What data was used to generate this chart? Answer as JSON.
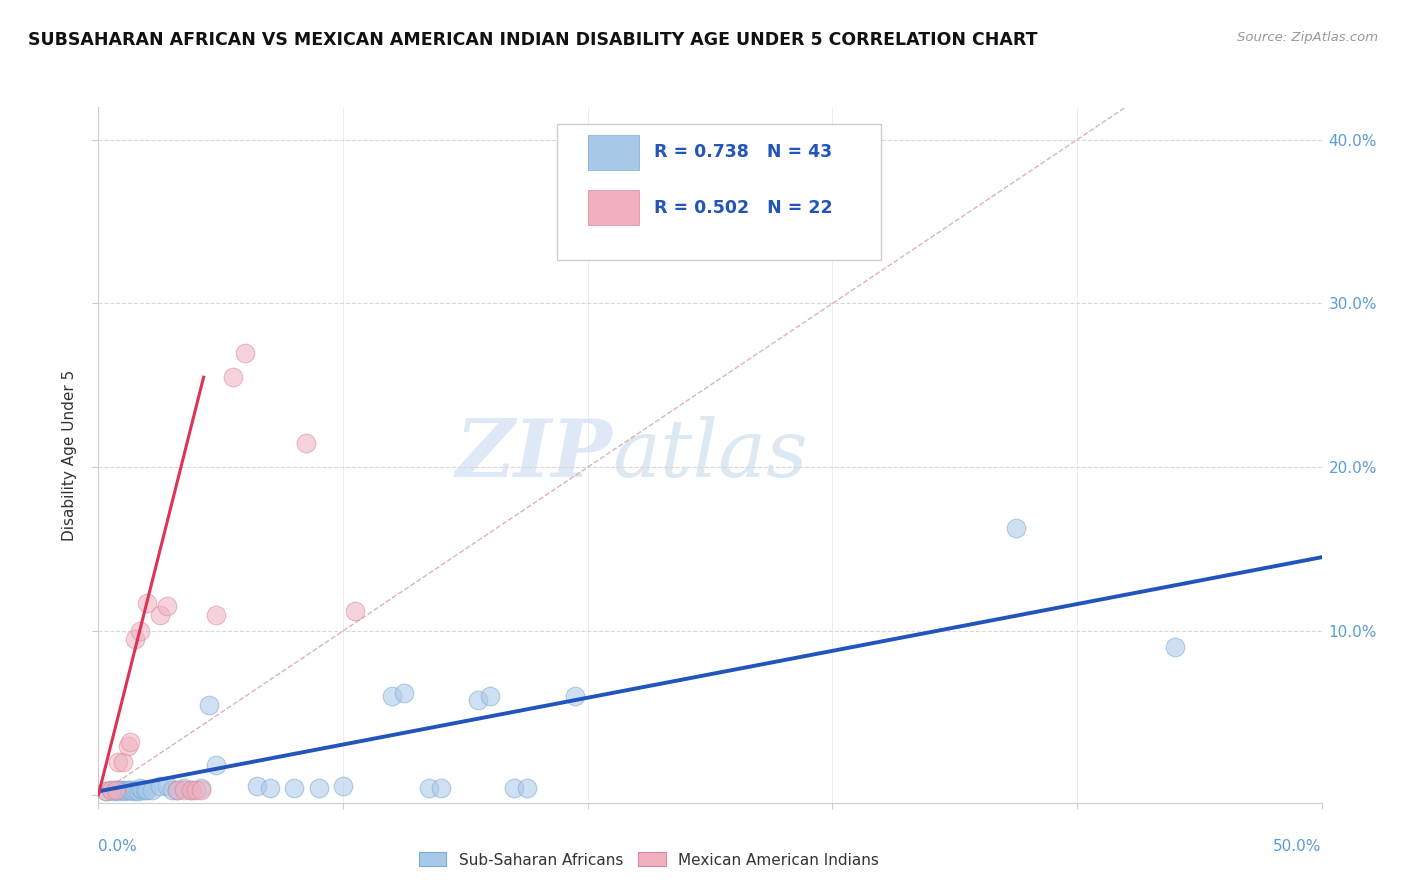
{
  "title": "SUBSAHARAN AFRICAN VS MEXICAN AMERICAN INDIAN DISABILITY AGE UNDER 5 CORRELATION CHART",
  "source": "Source: ZipAtlas.com",
  "ylabel": "Disability Age Under 5",
  "blue_label": "Sub-Saharan Africans",
  "pink_label": "Mexican American Indians",
  "legend_blue_r": "R = 0.738",
  "legend_blue_n": "N = 43",
  "legend_pink_r": "R = 0.502",
  "legend_pink_n": "N = 22",
  "watermark_zip": "ZIP",
  "watermark_atlas": "atlas",
  "blue_color": "#a8c8e8",
  "pink_color": "#f0b0c0",
  "trendline_blue_color": "#2255bb",
  "trendline_pink_color": "#dd3355",
  "ref_line_color": "#d0a0b0",
  "xlim": [
    0.0,
    0.5
  ],
  "ylim": [
    -0.005,
    0.42
  ],
  "blue_scatter": [
    [
      0.003,
      0.002
    ],
    [
      0.005,
      0.003
    ],
    [
      0.006,
      0.002
    ],
    [
      0.007,
      0.003
    ],
    [
      0.008,
      0.002
    ],
    [
      0.009,
      0.003
    ],
    [
      0.01,
      0.003
    ],
    [
      0.011,
      0.002
    ],
    [
      0.012,
      0.003
    ],
    [
      0.013,
      0.003
    ],
    [
      0.014,
      0.002
    ],
    [
      0.015,
      0.003
    ],
    [
      0.016,
      0.002
    ],
    [
      0.017,
      0.004
    ],
    [
      0.018,
      0.003
    ],
    [
      0.019,
      0.003
    ],
    [
      0.02,
      0.003
    ],
    [
      0.022,
      0.003
    ],
    [
      0.025,
      0.005
    ],
    [
      0.028,
      0.005
    ],
    [
      0.03,
      0.003
    ],
    [
      0.032,
      0.003
    ],
    [
      0.035,
      0.004
    ],
    [
      0.038,
      0.003
    ],
    [
      0.042,
      0.004
    ],
    [
      0.045,
      0.055
    ],
    [
      0.048,
      0.018
    ],
    [
      0.065,
      0.005
    ],
    [
      0.07,
      0.004
    ],
    [
      0.08,
      0.004
    ],
    [
      0.09,
      0.004
    ],
    [
      0.1,
      0.005
    ],
    [
      0.12,
      0.06
    ],
    [
      0.125,
      0.062
    ],
    [
      0.135,
      0.004
    ],
    [
      0.14,
      0.004
    ],
    [
      0.155,
      0.058
    ],
    [
      0.16,
      0.06
    ],
    [
      0.17,
      0.004
    ],
    [
      0.175,
      0.004
    ],
    [
      0.195,
      0.06
    ],
    [
      0.375,
      0.163
    ],
    [
      0.44,
      0.09
    ]
  ],
  "pink_scatter": [
    [
      0.003,
      0.002
    ],
    [
      0.005,
      0.003
    ],
    [
      0.007,
      0.003
    ],
    [
      0.008,
      0.02
    ],
    [
      0.01,
      0.02
    ],
    [
      0.012,
      0.03
    ],
    [
      0.013,
      0.032
    ],
    [
      0.015,
      0.095
    ],
    [
      0.017,
      0.1
    ],
    [
      0.02,
      0.117
    ],
    [
      0.025,
      0.11
    ],
    [
      0.028,
      0.115
    ],
    [
      0.032,
      0.003
    ],
    [
      0.035,
      0.003
    ],
    [
      0.038,
      0.003
    ],
    [
      0.04,
      0.003
    ],
    [
      0.042,
      0.003
    ],
    [
      0.048,
      0.11
    ],
    [
      0.055,
      0.255
    ],
    [
      0.06,
      0.27
    ],
    [
      0.085,
      0.215
    ],
    [
      0.105,
      0.112
    ]
  ],
  "blue_trend_x": [
    0.0,
    0.5
  ],
  "blue_trend_y": [
    0.002,
    0.145
  ],
  "pink_trend_x": [
    0.0,
    0.043
  ],
  "pink_trend_y": [
    0.0,
    0.255
  ],
  "ref_line_x": [
    0.0,
    0.42
  ],
  "ref_line_y": [
    0.0,
    0.42
  ]
}
